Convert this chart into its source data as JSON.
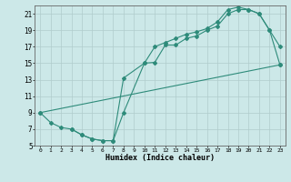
{
  "xlabel": "Humidex (Indice chaleur)",
  "line_color": "#2e8b7a",
  "bg_color": "#cce8e8",
  "grid_color": "#b8d8d8",
  "xlim": [
    -0.5,
    23.5
  ],
  "ylim": [
    5,
    22
  ],
  "xticks": [
    0,
    1,
    2,
    3,
    4,
    5,
    6,
    7,
    8,
    9,
    10,
    11,
    12,
    13,
    14,
    15,
    16,
    17,
    18,
    19,
    20,
    21,
    22,
    23
  ],
  "yticks": [
    5,
    7,
    9,
    11,
    13,
    15,
    17,
    19,
    21
  ],
  "line1_x": [
    0,
    1,
    2,
    3,
    4,
    5,
    6,
    7,
    8,
    10,
    11,
    12,
    13,
    14,
    15,
    16,
    17,
    18,
    19,
    20,
    21,
    22,
    23
  ],
  "line1_y": [
    9.0,
    7.8,
    7.2,
    7.0,
    6.3,
    5.8,
    5.6,
    5.6,
    9.0,
    15.0,
    15.1,
    17.2,
    17.2,
    18.0,
    18.3,
    19.0,
    19.5,
    21.0,
    21.5,
    21.5,
    21.0,
    19.0,
    17.0
  ],
  "line2_x": [
    3,
    4,
    5,
    6,
    7,
    8,
    10,
    11,
    12,
    13,
    14,
    15,
    16,
    17,
    18,
    19,
    20,
    21,
    22,
    23
  ],
  "line2_y": [
    7.0,
    6.3,
    5.8,
    5.6,
    5.6,
    13.2,
    15.0,
    17.0,
    17.5,
    18.0,
    18.5,
    18.8,
    19.2,
    20.0,
    21.5,
    21.8,
    21.5,
    21.0,
    19.0,
    14.8
  ],
  "line3_x": [
    0,
    23
  ],
  "line3_y": [
    9.0,
    14.8
  ]
}
